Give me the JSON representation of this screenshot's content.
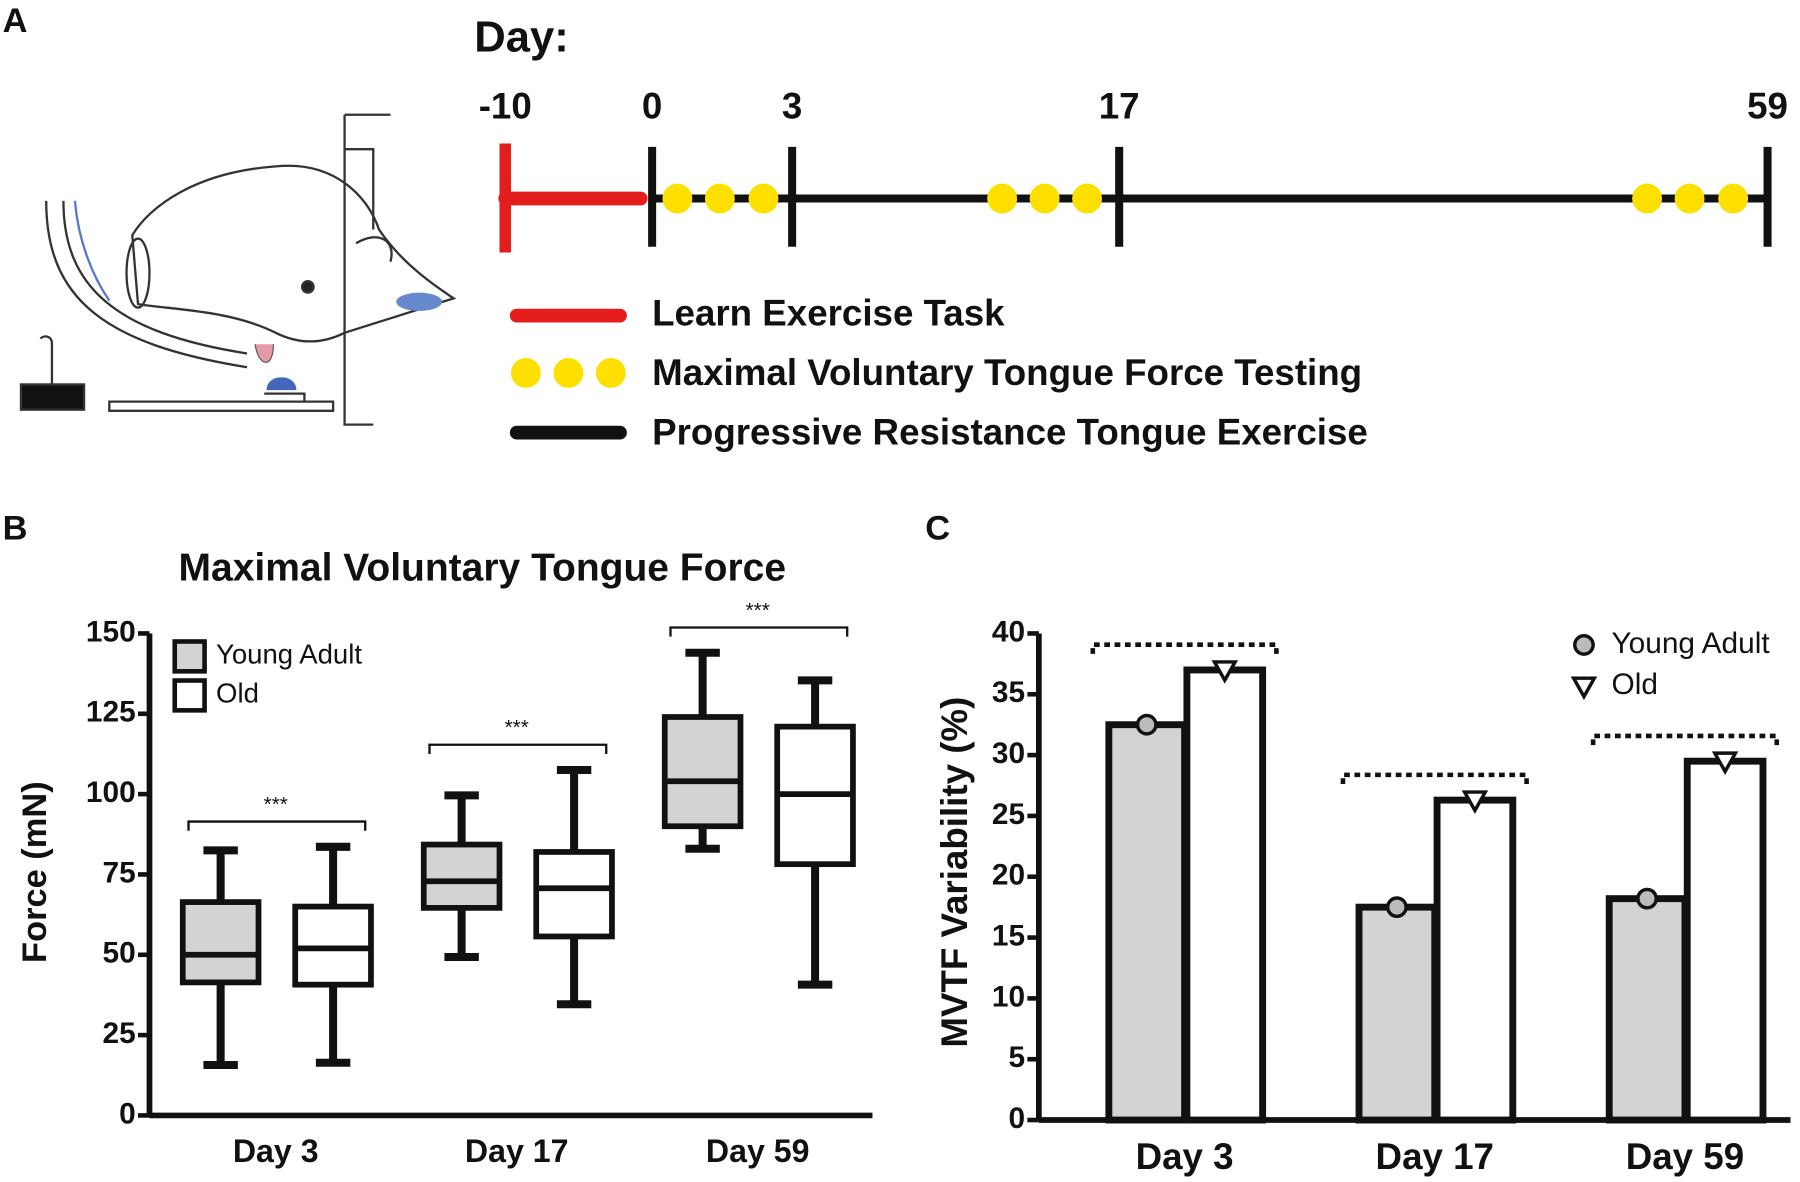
{
  "panel_labels": [
    "A",
    "B",
    "C"
  ],
  "timeline": {
    "title": "Day:",
    "days": [
      -10,
      0,
      3,
      17,
      59
    ],
    "legend": [
      "Learn Exercise Task",
      "Maximal Voluntary Tongue Force Testing",
      "Progressive Resistance Tongue Exercise"
    ]
  },
  "chart_data": [
    {
      "type": "box",
      "title": "Maximal Voluntary Tongue Force",
      "y_label": "Force (mN)",
      "categories": [
        "Day 3",
        "Day 17",
        "Day 59"
      ],
      "series": [
        {
          "name": "Young Adult",
          "color": "#d3d3d3",
          "min": [
            15.7,
            49.3,
            83
          ],
          "q1": [
            41.4,
            64.6,
            90
          ],
          "median": [
            50,
            72.9,
            104
          ],
          "q3": [
            66.4,
            84.3,
            124
          ],
          "max": [
            82.5,
            99.6,
            144
          ]
        },
        {
          "name": "Old",
          "color": "#ffffff",
          "min": [
            16.4,
            34.6,
            40.7
          ],
          "q1": [
            40.7,
            55.7,
            78.2
          ],
          "median": [
            52,
            70.7,
            100
          ],
          "q3": [
            65,
            82,
            121
          ],
          "max": [
            83.6,
            107.5,
            135.4
          ]
        }
      ],
      "annotations": [
        "***",
        "***",
        "***"
      ],
      "ylim": [
        0,
        150
      ],
      "yticks": [
        0,
        25,
        50,
        75,
        100,
        125,
        150
      ]
    },
    {
      "type": "bar",
      "y_label": "MVTF Variability (%)",
      "categories": [
        "Day 3",
        "Day 17",
        "Day 59"
      ],
      "series": [
        {
          "name": "Young Adult",
          "color": "#d3d3d3",
          "marker": "circle",
          "values": [
            32.5,
            17.5,
            18.2
          ]
        },
        {
          "name": "Old",
          "color": "#ffffff",
          "marker": "triangle",
          "values": [
            37,
            26.3,
            29.5
          ]
        }
      ],
      "ylim": [
        0,
        40
      ],
      "yticks": [
        0,
        5,
        10,
        15,
        20,
        25,
        30,
        35,
        40
      ]
    }
  ]
}
